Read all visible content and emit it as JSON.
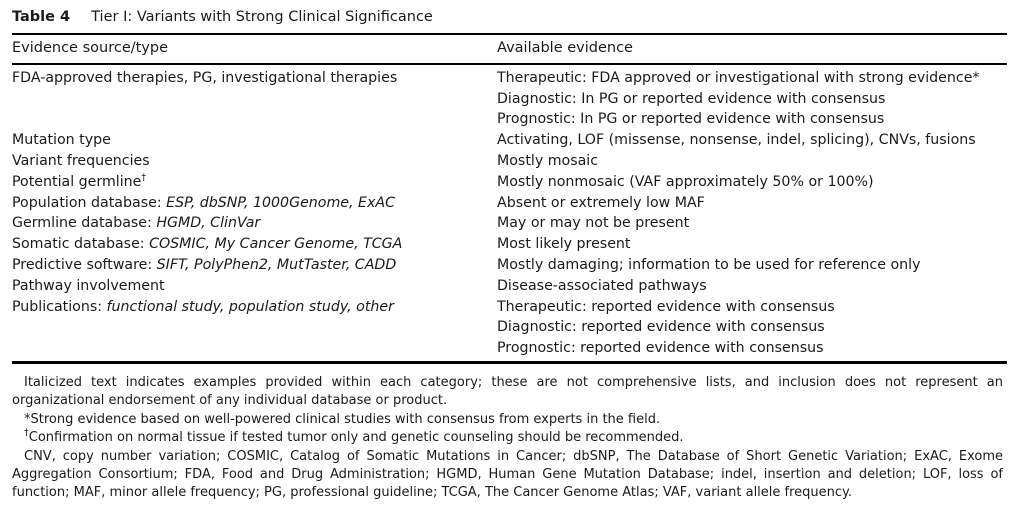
{
  "colors": {
    "background": "#ffffff",
    "text": "#1b1b1b",
    "rule": "#000000"
  },
  "table": {
    "label": "Table 4",
    "title": "Tier I: Variants with Strong Clinical Significance",
    "columns": [
      "Evidence source/type",
      "Available evidence"
    ],
    "rows": [
      {
        "source": [
          {
            "text": "FDA-approved therapies, PG, investigational therapies"
          }
        ],
        "evidence": [
          "Therapeutic: FDA approved or investigational with strong evidence*",
          "Diagnostic: In PG or reported evidence with consensus",
          "Prognostic: In PG or reported evidence with consensus"
        ]
      },
      {
        "source": [
          {
            "text": "Mutation type"
          }
        ],
        "evidence": [
          "Activating, LOF (missense, nonsense, indel, splicing), CNVs, fusions"
        ]
      },
      {
        "source": [
          {
            "text": "Variant frequencies"
          }
        ],
        "evidence": [
          "Mostly mosaic"
        ]
      },
      {
        "source": [
          {
            "text": "Potential germline"
          },
          {
            "text": "†",
            "sup": true
          }
        ],
        "evidence": [
          "Mostly nonmosaic (VAF approximately 50% or 100%)"
        ]
      },
      {
        "source": [
          {
            "text": "Population database: "
          },
          {
            "text": "ESP, dbSNP, 1000Genome, ExAC",
            "italic": true
          }
        ],
        "evidence": [
          "Absent or extremely low MAF"
        ]
      },
      {
        "source": [
          {
            "text": "Germline database: "
          },
          {
            "text": "HGMD, ClinVar",
            "italic": true
          }
        ],
        "evidence": [
          "May or may not be present"
        ]
      },
      {
        "source": [
          {
            "text": "Somatic database: "
          },
          {
            "text": "COSMIC, My Cancer Genome, TCGA",
            "italic": true
          }
        ],
        "evidence": [
          "Most likely present"
        ]
      },
      {
        "source": [
          {
            "text": "Predictive software: "
          },
          {
            "text": "SIFT, PolyPhen2, MutTaster, CADD",
            "italic": true
          }
        ],
        "evidence": [
          "Mostly damaging; information to be used for reference only"
        ]
      },
      {
        "source": [
          {
            "text": "Pathway involvement"
          }
        ],
        "evidence": [
          "Disease-associated pathways"
        ]
      },
      {
        "source": [
          {
            "text": "Publications: "
          },
          {
            "text": "functional study, population study, other",
            "italic": true
          }
        ],
        "evidence": [
          "Therapeutic: reported evidence with consensus",
          "Diagnostic: reported evidence with consensus",
          "Prognostic: reported evidence with consensus"
        ]
      }
    ],
    "footnotes": [
      [
        {
          "text": "Italicized text indicates examples provided within each category; these are not comprehensive lists, and inclusion does not represent an organizational endorsement of any individual database or product."
        }
      ],
      [
        {
          "text": "*Strong evidence based on well-powered clinical studies with consensus from experts in the field."
        }
      ],
      [
        {
          "text": "†",
          "sup": true
        },
        {
          "text": "Confirmation on normal tissue if tested tumor only and genetic counseling should be recommended."
        }
      ],
      [
        {
          "text": "CNV, copy number variation; COSMIC, Catalog of Somatic Mutations in Cancer; dbSNP, The Database of Short Genetic Variation; ExAC, Exome Aggregation Consortium; FDA, Food and Drug Administration; HGMD, Human Gene Mutation Database; indel, insertion and deletion; LOF, loss of function; MAF, minor allele frequency; PG, professional guideline; TCGA, The Cancer Genome Atlas; VAF, variant allele frequency."
        }
      ]
    ]
  }
}
